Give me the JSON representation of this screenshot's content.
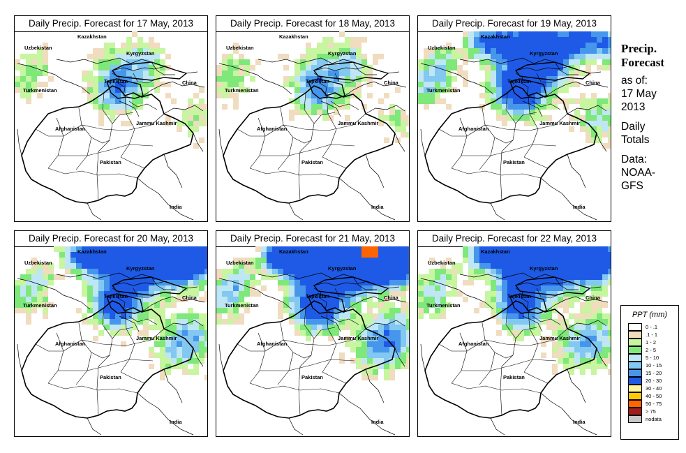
{
  "panels": [
    {
      "title": "Daily Precip. Forecast for  17 May, 2013",
      "intensity": 1,
      "north": 0,
      "east": 0
    },
    {
      "title": "Daily Precip. Forecast for  18 May, 2013",
      "intensity": 1,
      "north": 0,
      "east": 0
    },
    {
      "title": "Daily Precip. Forecast for  19 May, 2013",
      "intensity": 3,
      "north": 1,
      "east": 0
    },
    {
      "title": "Daily Precip. Forecast for  20 May, 2013",
      "intensity": 2,
      "north": 2,
      "east": 1
    },
    {
      "title": "Daily Precip. Forecast for  21 May, 2013",
      "intensity": 3,
      "north": 3,
      "east": 1
    },
    {
      "title": "Daily Precip. Forecast for  22 May, 2013",
      "intensity": 2,
      "north": 2,
      "east": 1
    }
  ],
  "map_labels": {
    "uzbekistan": "Uzbekistan",
    "kazakhstan": "Kazakhstan",
    "kyrgyzstan": "Kyrgyzstan",
    "tajikistan": "Tajikistan",
    "turkmenistan": "Turkmenistan",
    "china": "China",
    "afghanistan": "Afghanistan",
    "jammu_kashmir": "Jammu Kashmir",
    "pakistan": "Pakistan",
    "india": "India"
  },
  "side": {
    "title_line1": "Precip.",
    "title_line2": "Forecast",
    "as_of": "as of:",
    "date_line1": "17 May",
    "date_line2": "2013",
    "totals_line1": "Daily",
    "totals_line2": "Totals",
    "data_line1": "Data:",
    "data_line2": "NOAA-",
    "data_line3": "GFS"
  },
  "legend": {
    "title": "PPT (mm)",
    "items": [
      {
        "label": "0 - .1",
        "color": "#ffffff"
      },
      {
        "label": ".1 - 1",
        "color": "#f0dcbe"
      },
      {
        "label": "1 - 2",
        "color": "#c8f5a0"
      },
      {
        "label": "2 - 5",
        "color": "#7ee87a"
      },
      {
        "label": "5 - 10",
        "color": "#bfe6f5"
      },
      {
        "label": "10 - 15",
        "color": "#82c8f0"
      },
      {
        "label": "15 - 20",
        "color": "#4696eb"
      },
      {
        "label": "20 - 30",
        "color": "#1e5ae6"
      },
      {
        "label": "30 - 40",
        "color": "#fff3a0"
      },
      {
        "label": "40 - 50",
        "color": "#ffc800"
      },
      {
        "label": "50 - 75",
        "color": "#ff6400"
      },
      {
        "label": "> 75",
        "color": "#a01e1e"
      },
      {
        "label": "nodata",
        "color": "#c8c8c8"
      }
    ]
  }
}
